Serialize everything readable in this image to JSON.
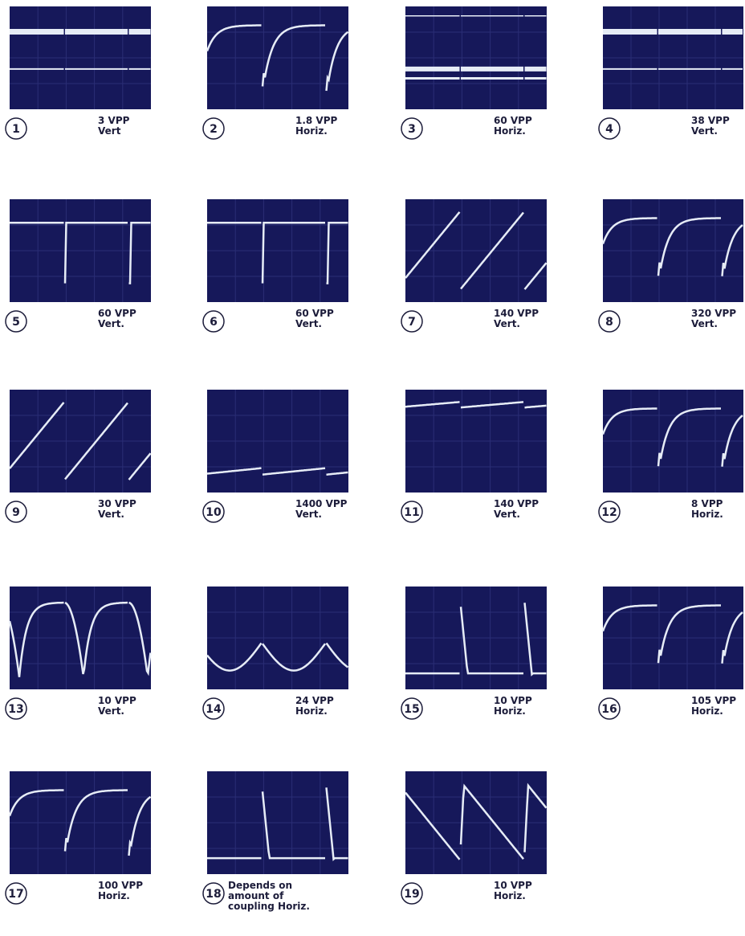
{
  "panels": [
    {
      "number": "1",
      "lines": [
        "3 VPP",
        "Vert"
      ]
    },
    {
      "number": "2",
      "lines": [
        "1.8 VPP",
        "Horiz."
      ]
    },
    {
      "number": "3",
      "lines": [
        "60 VPP",
        "Horiz."
      ]
    },
    {
      "number": "4",
      "lines": [
        "38 VPP",
        "Vert."
      ]
    },
    {
      "number": "5",
      "lines": [
        "60 VPP",
        "Vert."
      ]
    },
    {
      "number": "6",
      "lines": [
        "60 VPP",
        "Vert."
      ]
    },
    {
      "number": "7",
      "lines": [
        "140 VPP",
        "Vert."
      ]
    },
    {
      "number": "8",
      "lines": [
        "320 VPP",
        "Vert."
      ]
    },
    {
      "number": "9",
      "lines": [
        "30 VPP",
        "Vert."
      ]
    },
    {
      "number": "10",
      "lines": [
        "1400 VPP",
        "Vert."
      ]
    },
    {
      "number": "11",
      "lines": [
        "140 VPP",
        "Vert."
      ]
    },
    {
      "number": "12",
      "lines": [
        "8 VPP",
        "Horiz."
      ]
    },
    {
      "number": "13",
      "lines": [
        "10 VPP",
        "Vert."
      ]
    },
    {
      "number": "14",
      "lines": [
        "24 VPP",
        "Horiz."
      ]
    },
    {
      "number": "15",
      "lines": [
        "10 VPP",
        "Horiz."
      ]
    },
    {
      "number": "16",
      "lines": [
        "105 VPP",
        "Horiz."
      ]
    },
    {
      "number": "17",
      "lines": [
        "100 VPP",
        "Horiz."
      ]
    },
    {
      "number": "18",
      "lines": [
        "Depends on",
        "amount of",
        "coupling Horiz."
      ]
    },
    {
      "number": "19",
      "lines": [
        "10 VPP",
        "Horiz."
      ]
    }
  ]
}
